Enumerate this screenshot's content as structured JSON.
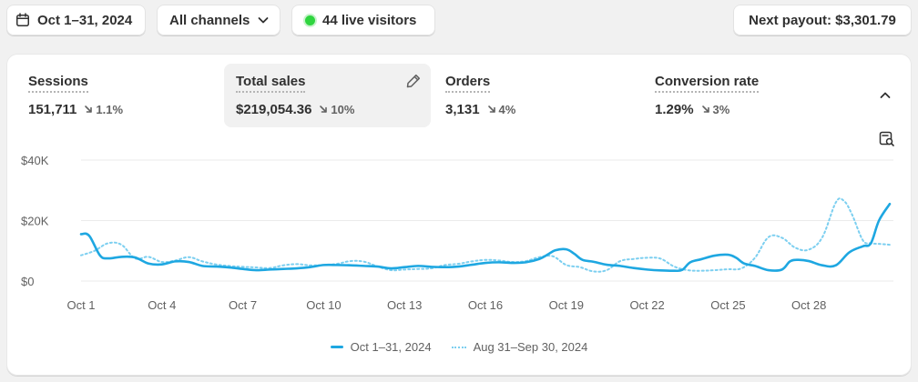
{
  "toolbar": {
    "date_range": "Oct 1–31, 2024",
    "channels": "All channels",
    "live_visitors": "44 live visitors",
    "next_payout": "Next payout: $3,301.79"
  },
  "metrics": [
    {
      "label": "Sessions",
      "value": "151,711",
      "change": "1.1%",
      "direction": "down"
    },
    {
      "label": "Total sales",
      "value": "$219,054.36",
      "change": "10%",
      "direction": "down",
      "selected": true
    },
    {
      "label": "Orders",
      "value": "3,131",
      "change": "4%",
      "direction": "down"
    },
    {
      "label": "Conversion rate",
      "value": "1.29%",
      "change": "3%",
      "direction": "down"
    }
  ],
  "icons": {
    "date": "calendar-icon",
    "channels": "chevron-down-icon",
    "live": "live-dot-icon",
    "edit": "pencil-icon",
    "collapse": "chevron-up-icon",
    "chart_tools": "chart-search-icon",
    "trend": "arrow-down-right-icon"
  },
  "colors": {
    "current_series": "#1ea7e1",
    "previous_series": "#7ccff0",
    "live_dot": "#2fd53f"
  },
  "chart_data": {
    "type": "line",
    "title": "",
    "xlabel": "",
    "ylabel": "",
    "ylim": [
      0,
      40000
    ],
    "y_ticks": [
      "$0",
      "$20K",
      "$40K"
    ],
    "y_tick_values": [
      0,
      20000,
      40000
    ],
    "x_ticks": [
      "Oct 1",
      "Oct 4",
      "Oct 7",
      "Oct 10",
      "Oct 13",
      "Oct 16",
      "Oct 19",
      "Oct 22",
      "Oct 25",
      "Oct 28"
    ],
    "x_tick_days": [
      1,
      4,
      7,
      10,
      13,
      16,
      19,
      22,
      25,
      28
    ],
    "grid": true,
    "legend_position": "bottom",
    "series": [
      {
        "name": "Oct 1–31, 2024",
        "style": "solid",
        "x": [
          1,
          1.3,
          1.7,
          2,
          2.5,
          3,
          3.5,
          4,
          4.5,
          5,
          5.5,
          6,
          6.5,
          7,
          7.5,
          8,
          8.5,
          9,
          9.5,
          10,
          10.5,
          11,
          11.5,
          12,
          12.5,
          13,
          13.5,
          14,
          14.5,
          15,
          15.5,
          16,
          16.5,
          17,
          17.5,
          18,
          18.3,
          18.6,
          19,
          19.3,
          19.6,
          20,
          20.5,
          21,
          21.5,
          22,
          22.5,
          23,
          23.3,
          23.6,
          24,
          24.5,
          25,
          25.3,
          25.6,
          26,
          26.5,
          27,
          27.3,
          27.6,
          28,
          28.5,
          29,
          29.5,
          30,
          30.3,
          30.6,
          31
        ],
        "values": [
          15500,
          15000,
          8500,
          7500,
          8000,
          7800,
          5800,
          5500,
          6500,
          6300,
          5000,
          4800,
          4500,
          4000,
          3600,
          3800,
          4000,
          4200,
          4600,
          5300,
          5300,
          5200,
          5000,
          4800,
          4200,
          4600,
          5000,
          4700,
          4600,
          4800,
          5400,
          6000,
          6200,
          6000,
          6200,
          7300,
          8700,
          10200,
          10500,
          9000,
          7000,
          6400,
          5400,
          5000,
          4300,
          3800,
          3500,
          3400,
          3700,
          6200,
          7200,
          8400,
          8700,
          7700,
          5800,
          5000,
          3600,
          3800,
          6500,
          7000,
          6600,
          5200,
          5200,
          9500,
          11500,
          12500,
          20000,
          25500
        ]
      },
      {
        "name": "Aug 31–Sep 30, 2024",
        "style": "dotted",
        "x": [
          1,
          1.5,
          2,
          2.5,
          3,
          3.5,
          4,
          4.5,
          5,
          5.5,
          6,
          6.5,
          7,
          7.5,
          8,
          8.5,
          9,
          9.5,
          10,
          10.5,
          11,
          11.5,
          12,
          12.5,
          13,
          13.5,
          14,
          14.5,
          15,
          15.5,
          16,
          16.5,
          17,
          17.5,
          18,
          18.5,
          19,
          19.5,
          20,
          20.5,
          21,
          21.5,
          22,
          22.5,
          23,
          23.5,
          24,
          24.5,
          25,
          25.5,
          26,
          26.5,
          27,
          27.5,
          28,
          28.5,
          29,
          29.3,
          29.6,
          30,
          30.3,
          30.6,
          31
        ],
        "values": [
          8500,
          10000,
          12500,
          12000,
          7500,
          8000,
          6300,
          6800,
          7900,
          6500,
          5500,
          5000,
          4700,
          4500,
          4300,
          5200,
          5600,
          5200,
          5300,
          5700,
          6600,
          6400,
          4800,
          3600,
          3800,
          4000,
          4200,
          5300,
          5700,
          6500,
          7000,
          6800,
          6300,
          6600,
          7900,
          8200,
          5300,
          4600,
          3200,
          3600,
          6600,
          7300,
          7700,
          7400,
          4800,
          3600,
          3400,
          3600,
          3900,
          4200,
          7700,
          14500,
          14300,
          11000,
          10400,
          14500,
          26000,
          26500,
          22000,
          13500,
          12500,
          12300,
          12000
        ]
      }
    ]
  }
}
